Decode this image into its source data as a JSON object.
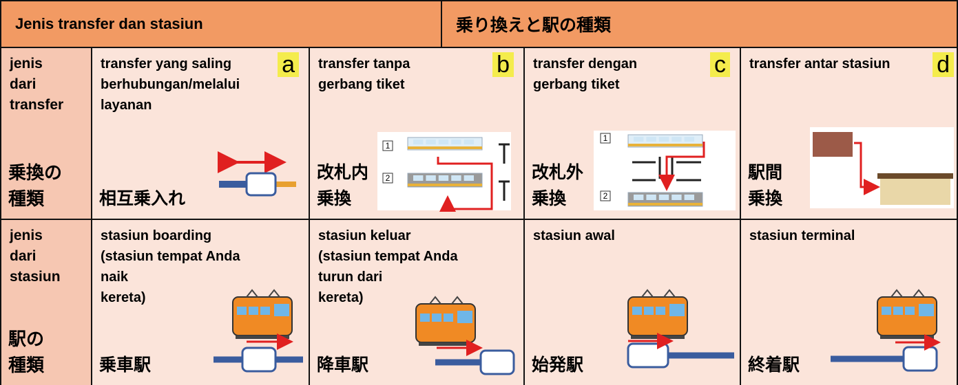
{
  "header": {
    "left": "Jenis transfer dan stasiun",
    "right": "乗り換えと駅の種類"
  },
  "rows": [
    {
      "label": [
        "jenis",
        "dari",
        "transfer"
      ],
      "label_ja": [
        "乗換の",
        "種類"
      ],
      "cells": [
        {
          "title": [
            "transfer yang saling",
            "berhubungan/melalui",
            "layanan"
          ],
          "letter": "a",
          "ja": [
            "相互乗入れ"
          ]
        },
        {
          "title": [
            "transfer tanpa",
            "gerbang tiket"
          ],
          "letter": "b",
          "ja": [
            "改札内",
            "乗換"
          ],
          "tracks": [
            "1",
            "2"
          ]
        },
        {
          "title": [
            "transfer dengan",
            "gerbang tiket"
          ],
          "letter": "c",
          "ja": [
            "改札外",
            "乗換"
          ],
          "tracks": [
            "1",
            "2"
          ]
        },
        {
          "title": [
            "transfer antar stasiun"
          ],
          "letter": "d",
          "ja": [
            "駅間",
            "乗換"
          ]
        }
      ]
    },
    {
      "label": [
        "jenis",
        "dari",
        "stasiun"
      ],
      "label_ja": [
        "駅の",
        "種類"
      ],
      "cells": [
        {
          "title": [
            "stasiun boarding",
            "(stasiun tempat Anda",
            "naik",
            "kereta)"
          ],
          "ja": [
            "乗車駅"
          ]
        },
        {
          "title": [
            "stasiun keluar",
            "(stasiun tempat Anda",
            "turun dari",
            "kereta)"
          ],
          "ja": [
            "降車駅"
          ]
        },
        {
          "title": [
            "stasiun awal"
          ],
          "ja": [
            "始発駅"
          ]
        },
        {
          "title": [
            "stasiun terminal"
          ],
          "ja": [
            "終着駅"
          ]
        }
      ]
    }
  ]
}
